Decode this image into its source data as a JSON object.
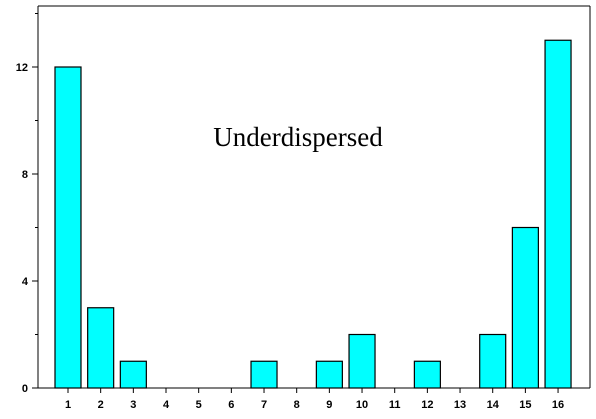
{
  "colors": {
    "bar_fill": "#00ffff",
    "bar_stroke": "#000000",
    "axis": "#000000"
  },
  "chart_data": {
    "type": "bar",
    "categories": [
      "1",
      "2",
      "3",
      "4",
      "5",
      "6",
      "7",
      "8",
      "9",
      "10",
      "11",
      "12",
      "13",
      "14",
      "15",
      "16"
    ],
    "values": [
      12,
      3,
      1,
      0,
      0,
      0,
      1,
      0,
      1,
      2,
      0,
      1,
      0,
      2,
      6,
      13
    ],
    "title": "",
    "xlabel": "",
    "ylabel": "",
    "ylim": [
      0,
      14
    ],
    "yticks": [
      0,
      4,
      8,
      12
    ],
    "yticks_minor_step": 2,
    "grid": false,
    "legend": "none",
    "annotations": [
      {
        "text": "Underdispersed"
      }
    ]
  }
}
